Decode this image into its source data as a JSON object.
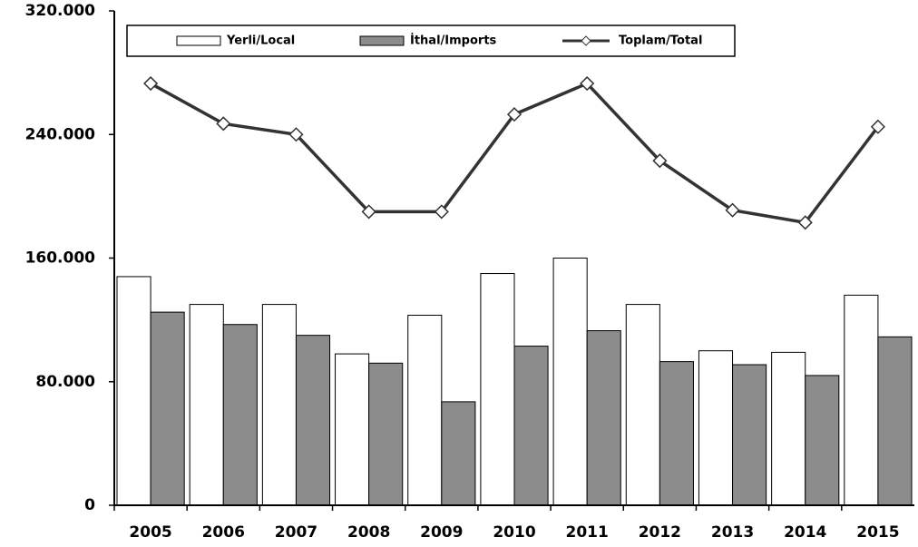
{
  "chart_data": {
    "type": "bar",
    "categories": [
      "2005",
      "2006",
      "2007",
      "2008",
      "2009",
      "2010",
      "2011",
      "2012",
      "2013",
      "2014",
      "2015"
    ],
    "series": [
      {
        "name": "Yerli/Local",
        "color": "#ffffff",
        "type": "bar",
        "values": [
          148000,
          130000,
          130000,
          98000,
          123000,
          150000,
          160000,
          130000,
          100000,
          99000,
          136000
        ]
      },
      {
        "name": "İthal/Imports",
        "color": "#8c8c8c",
        "type": "bar",
        "values": [
          125000,
          117000,
          110000,
          92000,
          67000,
          103000,
          113000,
          93000,
          91000,
          84000,
          109000
        ]
      },
      {
        "name": "Toplam/Total",
        "color": "#333333",
        "type": "line",
        "values": [
          273000,
          247000,
          240000,
          190000,
          190000,
          253000,
          273000,
          223000,
          191000,
          183000,
          245000
        ]
      }
    ],
    "ylim": [
      0,
      320000
    ],
    "yticks": [
      0,
      {
        "value": 80000,
        "label": "80.000"
      },
      {
        "value": 160000,
        "label": "160.000"
      },
      {
        "value": 240000,
        "label": "240.000"
      },
      {
        "value": 320000,
        "label": "320.000"
      }
    ],
    "grid": false,
    "legend": "top"
  }
}
